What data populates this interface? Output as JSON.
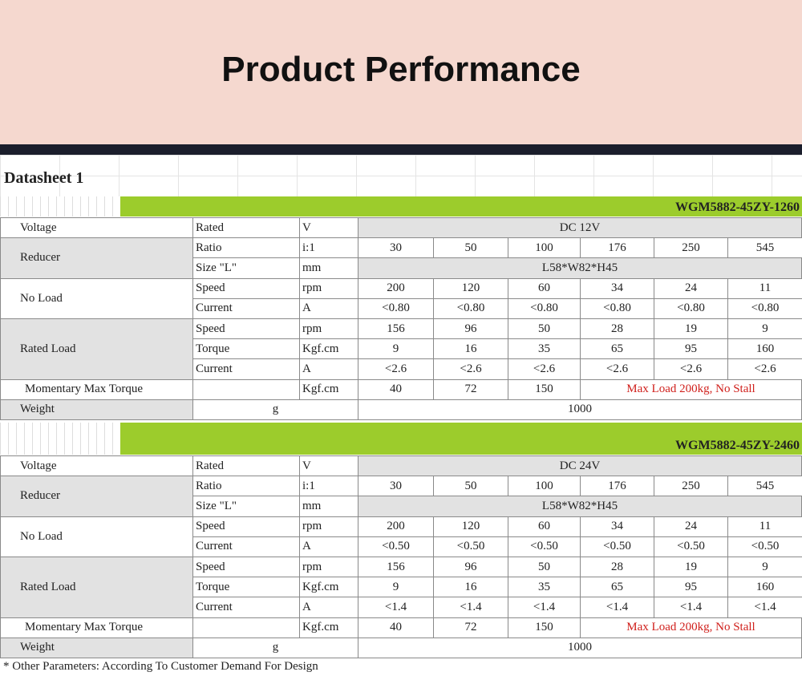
{
  "header": {
    "title": "Product Performance"
  },
  "sheet_title": "Datasheet 1",
  "tables": [
    {
      "model": "WGM5882-45ZY-1260",
      "groups": [
        {
          "label": "Voltage",
          "rows": [
            {
              "param": "Rated",
              "unit": "V",
              "span": "DC 12V"
            }
          ]
        },
        {
          "label": "Reducer",
          "rows": [
            {
              "param": "Ratio",
              "unit": "i:1",
              "values": [
                30,
                50,
                100,
                176,
                250,
                545
              ]
            },
            {
              "param": "Size \"L\"",
              "unit": "mm",
              "span": "L58*W82*H45"
            }
          ]
        },
        {
          "label": "No Load",
          "rows": [
            {
              "param": "Speed",
              "unit": "rpm",
              "values": [
                200,
                120,
                60,
                34,
                24,
                11
              ]
            },
            {
              "param": "Current",
              "unit": "A",
              "values": [
                "<0.80",
                "<0.80",
                "<0.80",
                "<0.80",
                "<0.80",
                "<0.80"
              ]
            }
          ]
        },
        {
          "label": "Rated Load",
          "rows": [
            {
              "param": "Speed",
              "unit": "rpm",
              "values": [
                156,
                96,
                50,
                28,
                19,
                9
              ]
            },
            {
              "param": "Torque",
              "unit": "Kgf.cm",
              "values": [
                9,
                16,
                35,
                65,
                95,
                160
              ]
            },
            {
              "param": "Current",
              "unit": "A",
              "values": [
                "<2.6",
                "<2.6",
                "<2.6",
                "<2.6",
                "<2.6",
                "<2.6"
              ]
            }
          ]
        },
        {
          "label": "Momentary Max Torque",
          "rows": [
            {
              "unit": "Kgf.cm",
              "values": [
                40,
                72,
                150
              ],
              "note": "Max Load 200kg, No Stall"
            }
          ]
        },
        {
          "label": "Weight",
          "rows": [
            {
              "unit": "g",
              "span": 1000
            }
          ]
        }
      ]
    },
    {
      "model": "WGM5882-45ZY-2460",
      "groups": [
        {
          "label": "Voltage",
          "rows": [
            {
              "param": "Rated",
              "unit": "V",
              "span": "DC 24V"
            }
          ]
        },
        {
          "label": "Reducer",
          "rows": [
            {
              "param": "Ratio",
              "unit": "i:1",
              "values": [
                30,
                50,
                100,
                176,
                250,
                545
              ]
            },
            {
              "param": "Size \"L\"",
              "unit": "mm",
              "span": "L58*W82*H45"
            }
          ]
        },
        {
          "label": "No Load",
          "rows": [
            {
              "param": "Speed",
              "unit": "rpm",
              "values": [
                200,
                120,
                60,
                34,
                24,
                11
              ]
            },
            {
              "param": "Current",
              "unit": "A",
              "values": [
                "<0.50",
                "<0.50",
                "<0.50",
                "<0.50",
                "<0.50",
                "<0.50"
              ]
            }
          ]
        },
        {
          "label": "Rated Load",
          "rows": [
            {
              "param": "Speed",
              "unit": "rpm",
              "values": [
                156,
                96,
                50,
                28,
                19,
                9
              ]
            },
            {
              "param": "Torque",
              "unit": "Kgf.cm",
              "values": [
                9,
                16,
                35,
                65,
                95,
                160
              ]
            },
            {
              "param": "Current",
              "unit": "A",
              "values": [
                "<1.4",
                "<1.4",
                "<1.4",
                "<1.4",
                "<1.4",
                "<1.4"
              ]
            }
          ]
        },
        {
          "label": "Momentary Max Torque",
          "rows": [
            {
              "unit": "Kgf.cm",
              "values": [
                40,
                72,
                150
              ],
              "note": "Max Load 200kg, No Stall"
            }
          ]
        },
        {
          "label": "Weight",
          "rows": [
            {
              "unit": "g",
              "span": 1000
            }
          ]
        }
      ]
    }
  ],
  "footnote": "* Other Parameters: According To Customer Demand For Design"
}
